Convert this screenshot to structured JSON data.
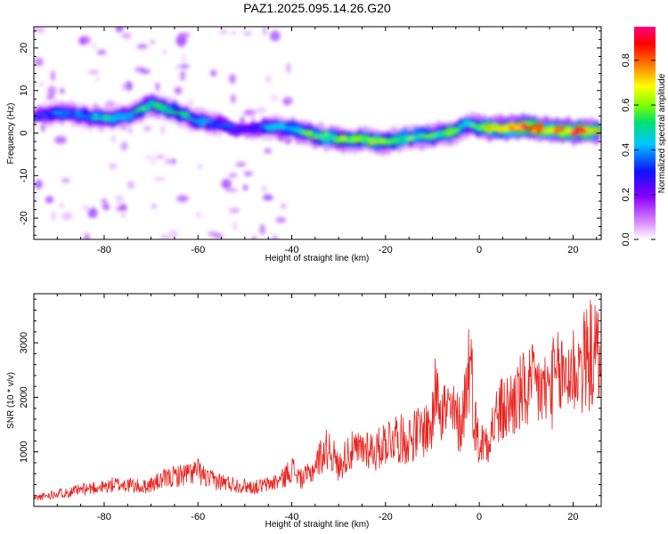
{
  "figure": {
    "title": "PAZ1.2025.095.14.26.G20"
  },
  "chart_data": [
    {
      "type": "heatmap",
      "panel": "top",
      "xlabel": "Height of straight line (km)",
      "ylabel": "Frequency (Hz)",
      "xlim": [
        -95,
        26
      ],
      "ylim": [
        -25,
        25
      ],
      "xticks": [
        -80,
        -60,
        -40,
        -20,
        0,
        20
      ],
      "yticks": [
        -20,
        -10,
        0,
        10,
        20
      ],
      "colorbar": {
        "label": "Normalized spectral amplitude",
        "range": [
          0,
          0.95
        ],
        "ticks": [
          0.0,
          0.2,
          0.4,
          0.6,
          0.8
        ],
        "colormap": [
          "#ffffff",
          "#d98cff",
          "#8a00ff",
          "#1010ff",
          "#00c8ff",
          "#00e070",
          "#7dff00",
          "#ffff00",
          "#ff7a00",
          "#ff0000",
          "#ff0080"
        ]
      },
      "ridge": {
        "x": [
          -95,
          -90,
          -85,
          -80,
          -75,
          -70,
          -65,
          -60,
          -55,
          -50,
          -45,
          -40,
          -35,
          -30,
          -25,
          -20,
          -15,
          -10,
          -5,
          -2,
          0,
          5,
          10,
          15,
          20,
          26
        ],
        "freq": [
          4.0,
          5.0,
          4.0,
          3.5,
          4.0,
          7.0,
          5.0,
          3.0,
          2.0,
          0.5,
          1.5,
          1.0,
          -0.5,
          -1.5,
          -1.5,
          -2.0,
          -1.0,
          -0.5,
          0.5,
          2.5,
          1.5,
          1.0,
          1.5,
          0.5,
          0.5,
          0.5
        ],
        "peak_amplitude": [
          0.3,
          0.35,
          0.4,
          0.45,
          0.45,
          0.5,
          0.45,
          0.4,
          0.35,
          0.25,
          0.4,
          0.45,
          0.55,
          0.6,
          0.6,
          0.65,
          0.55,
          0.5,
          0.55,
          0.45,
          0.6,
          0.75,
          0.85,
          0.8,
          0.85,
          0.8
        ]
      }
    },
    {
      "type": "line",
      "panel": "bottom",
      "xlabel": "Height of straight line (km)",
      "ylabel": "SNR (10 * v/v)",
      "xlim": [
        -95,
        26
      ],
      "ylim": [
        0,
        3900
      ],
      "xticks": [
        -80,
        -60,
        -40,
        -20,
        0,
        20
      ],
      "yticks": [
        1000,
        2000,
        3000
      ],
      "line_color": "#e8231e",
      "series": [
        {
          "x": [
            -95,
            -92,
            -90,
            -88,
            -85,
            -82,
            -80,
            -78,
            -75,
            -72,
            -70,
            -67,
            -65,
            -62,
            -60,
            -58,
            -55,
            -52,
            -50,
            -48,
            -45,
            -42,
            -40,
            -38,
            -36,
            -34,
            -32,
            -30,
            -28,
            -26,
            -24,
            -22,
            -20,
            -18,
            -16,
            -14,
            -12,
            -10,
            -9,
            -8,
            -6,
            -4,
            -3,
            -2,
            -1,
            0,
            2,
            4,
            6,
            8,
            10,
            12,
            14,
            16,
            18,
            20,
            22,
            24,
            26
          ],
          "y": [
            150,
            200,
            250,
            250,
            300,
            350,
            350,
            400,
            400,
            350,
            400,
            500,
            550,
            600,
            650,
            500,
            450,
            400,
            380,
            350,
            400,
            500,
            700,
            500,
            600,
            900,
            1100,
            700,
            1000,
            1000,
            1100,
            1000,
            1200,
            1300,
            1200,
            1300,
            1400,
            1500,
            2500,
            1800,
            1700,
            1500,
            2000,
            2800,
            1600,
            1100,
            1300,
            1700,
            1800,
            2000,
            2100,
            2200,
            2100,
            2300,
            2400,
            2500,
            2600,
            2800,
            2700
          ]
        }
      ]
    }
  ]
}
